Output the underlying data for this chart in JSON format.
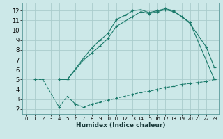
{
  "background_color": "#cce8e8",
  "grid_color": "#aacccc",
  "line_color": "#1a7a6a",
  "xlabel": "Humidex (Indice chaleur)",
  "xlim": [
    -0.5,
    23.5
  ],
  "ylim": [
    1.5,
    12.8
  ],
  "xticks": [
    0,
    1,
    2,
    3,
    4,
    5,
    6,
    7,
    8,
    9,
    10,
    11,
    12,
    13,
    14,
    15,
    16,
    17,
    18,
    19,
    20,
    21,
    22,
    23
  ],
  "yticks": [
    2,
    3,
    4,
    5,
    6,
    7,
    8,
    9,
    10,
    11,
    12
  ],
  "line1_x": [
    4,
    5,
    7,
    8,
    9,
    10,
    11,
    12,
    13,
    14,
    15,
    16,
    17,
    18,
    20,
    23
  ],
  "line1_y": [
    5,
    5,
    7.2,
    8.2,
    9.0,
    9.7,
    11.1,
    11.5,
    12.0,
    12.1,
    11.8,
    12.0,
    12.2,
    12.0,
    10.8,
    5.0
  ],
  "line2_x": [
    4,
    5,
    7,
    8,
    9,
    10,
    11,
    12,
    13,
    14,
    15,
    16,
    17,
    18,
    19,
    20,
    22,
    23
  ],
  "line2_y": [
    5,
    5,
    7.0,
    7.7,
    8.4,
    9.2,
    10.4,
    10.9,
    11.4,
    11.9,
    11.7,
    11.9,
    12.1,
    11.9,
    11.4,
    10.7,
    8.3,
    6.2
  ],
  "line3_x": [
    1,
    2,
    4,
    5,
    6,
    7,
    8,
    9,
    10,
    11,
    12,
    13,
    14,
    15,
    16,
    17,
    18,
    19,
    20,
    21,
    22,
    23
  ],
  "line3_y": [
    5,
    5,
    2.2,
    3.3,
    2.5,
    2.2,
    2.5,
    2.7,
    2.9,
    3.1,
    3.3,
    3.5,
    3.7,
    3.8,
    4.0,
    4.2,
    4.3,
    4.5,
    4.6,
    4.7,
    4.8,
    5.0
  ],
  "xlabel_fontsize": 6.5,
  "tick_fontsize_x": 5,
  "tick_fontsize_y": 6
}
